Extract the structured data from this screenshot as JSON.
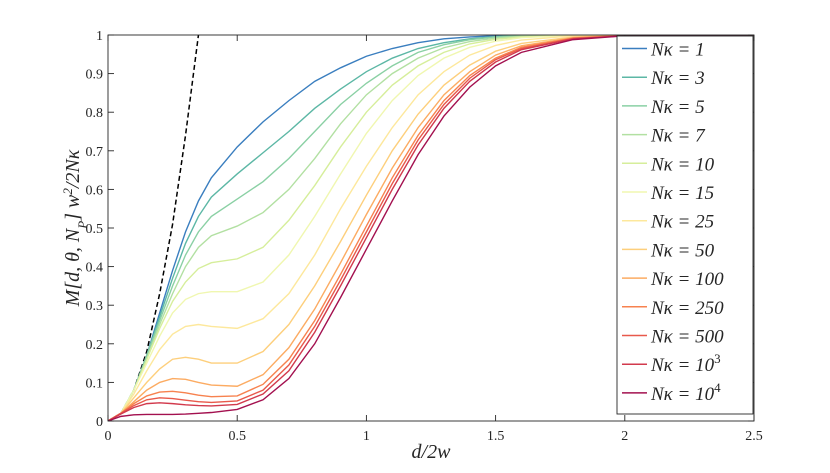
{
  "chart_data": {
    "type": "line",
    "title": "",
    "xlabel": "d/2w",
    "ylabel": "M[d, θ, N_P] w²/2Nκ",
    "xlim": [
      0,
      2.5
    ],
    "ylim": [
      0,
      1
    ],
    "xticks": [
      "0",
      "0.5",
      "1",
      "1.5",
      "2",
      "2.5"
    ],
    "xtick_values": [
      0,
      0.5,
      1,
      1.5,
      2,
      2.5
    ],
    "yticks": [
      "0",
      "0.1",
      "0.2",
      "0.3",
      "0.4",
      "0.5",
      "0.6",
      "0.7",
      "0.8",
      "0.9",
      "1"
    ],
    "ytick_values": [
      0,
      0.1,
      0.2,
      0.3,
      0.4,
      0.5,
      0.6,
      0.7,
      0.8,
      0.9,
      1
    ],
    "grid": false,
    "legend_position": "right",
    "reference_line": {
      "style": "dashed",
      "color": "#000000",
      "x": [
        0,
        0.05,
        0.1,
        0.15,
        0.2,
        0.25,
        0.3,
        0.35
      ],
      "y": [
        0,
        0.02,
        0.08,
        0.18,
        0.33,
        0.51,
        0.74,
        1.0
      ]
    },
    "series": [
      {
        "name": "Nκ = 1",
        "legend_label": "Nκ = 1",
        "color": "#3a7ebf",
        "x": [
          0,
          0.05,
          0.1,
          0.15,
          0.2,
          0.25,
          0.3,
          0.35,
          0.4,
          0.5,
          0.6,
          0.7,
          0.8,
          0.9,
          1.0,
          1.1,
          1.2,
          1.3,
          1.4,
          1.5,
          1.6,
          1.8,
          2.0,
          2.5
        ],
        "y": [
          0,
          0.02,
          0.08,
          0.17,
          0.28,
          0.39,
          0.49,
          0.57,
          0.63,
          0.71,
          0.775,
          0.83,
          0.88,
          0.915,
          0.945,
          0.965,
          0.98,
          0.99,
          0.995,
          0.998,
          1.0,
          1.0,
          1.0,
          1.0
        ]
      },
      {
        "name": "Nκ = 3",
        "legend_label": "Nκ = 3",
        "color": "#5cb7a5",
        "x": [
          0,
          0.05,
          0.1,
          0.15,
          0.2,
          0.25,
          0.3,
          0.35,
          0.4,
          0.5,
          0.6,
          0.7,
          0.8,
          0.9,
          1.0,
          1.1,
          1.2,
          1.3,
          1.4,
          1.5,
          1.6,
          1.8,
          2.0,
          2.5
        ],
        "y": [
          0,
          0.02,
          0.08,
          0.17,
          0.27,
          0.37,
          0.46,
          0.53,
          0.58,
          0.64,
          0.695,
          0.75,
          0.81,
          0.86,
          0.905,
          0.94,
          0.965,
          0.98,
          0.99,
          0.996,
          0.999,
          1.0,
          1.0,
          1.0
        ]
      },
      {
        "name": "Nκ = 5",
        "legend_label": "Nκ = 5",
        "color": "#8ad0a4",
        "x": [
          0,
          0.05,
          0.1,
          0.15,
          0.2,
          0.25,
          0.3,
          0.35,
          0.4,
          0.5,
          0.6,
          0.7,
          0.8,
          0.9,
          1.0,
          1.1,
          1.2,
          1.3,
          1.4,
          1.5,
          1.6,
          1.8,
          2.0,
          2.5
        ],
        "y": [
          0,
          0.02,
          0.08,
          0.17,
          0.26,
          0.35,
          0.43,
          0.49,
          0.53,
          0.575,
          0.62,
          0.68,
          0.75,
          0.82,
          0.875,
          0.92,
          0.955,
          0.975,
          0.988,
          0.995,
          0.998,
          1.0,
          1.0,
          1.0
        ]
      },
      {
        "name": "Nκ = 7",
        "legend_label": "Nκ = 7",
        "color": "#b2e0a2",
        "x": [
          0,
          0.05,
          0.1,
          0.15,
          0.2,
          0.25,
          0.3,
          0.35,
          0.4,
          0.5,
          0.6,
          0.7,
          0.8,
          0.9,
          1.0,
          1.1,
          1.2,
          1.3,
          1.4,
          1.5,
          1.6,
          1.8,
          2.0,
          2.5
        ],
        "y": [
          0,
          0.02,
          0.08,
          0.16,
          0.25,
          0.33,
          0.4,
          0.45,
          0.48,
          0.505,
          0.54,
          0.6,
          0.68,
          0.77,
          0.845,
          0.9,
          0.94,
          0.967,
          0.983,
          0.992,
          0.997,
          1.0,
          1.0,
          1.0
        ]
      },
      {
        "name": "Nκ = 10",
        "legend_label": "Nκ = 10",
        "color": "#d6ee9b",
        "x": [
          0,
          0.05,
          0.1,
          0.15,
          0.2,
          0.25,
          0.3,
          0.35,
          0.4,
          0.5,
          0.6,
          0.7,
          0.8,
          0.9,
          1.0,
          1.1,
          1.2,
          1.3,
          1.4,
          1.5,
          1.6,
          1.8,
          2.0,
          2.5
        ],
        "y": [
          0,
          0.02,
          0.08,
          0.16,
          0.24,
          0.31,
          0.36,
          0.395,
          0.41,
          0.42,
          0.45,
          0.52,
          0.61,
          0.71,
          0.8,
          0.87,
          0.92,
          0.955,
          0.977,
          0.989,
          0.995,
          0.999,
          1.0,
          1.0
        ]
      },
      {
        "name": "Nκ = 15",
        "legend_label": "Nκ = 15",
        "color": "#f0f7b0",
        "x": [
          0,
          0.05,
          0.1,
          0.15,
          0.2,
          0.25,
          0.3,
          0.35,
          0.4,
          0.5,
          0.6,
          0.7,
          0.8,
          0.9,
          1.0,
          1.1,
          1.2,
          1.3,
          1.4,
          1.5,
          1.6,
          1.8,
          2.0,
          2.5
        ],
        "y": [
          0,
          0.02,
          0.08,
          0.15,
          0.22,
          0.28,
          0.315,
          0.33,
          0.335,
          0.335,
          0.36,
          0.43,
          0.53,
          0.64,
          0.745,
          0.83,
          0.895,
          0.94,
          0.968,
          0.984,
          0.993,
          0.999,
          1.0,
          1.0
        ]
      },
      {
        "name": "Nκ = 25",
        "legend_label": "Nκ = 25",
        "color": "#fde89c",
        "x": [
          0,
          0.05,
          0.1,
          0.15,
          0.2,
          0.25,
          0.3,
          0.35,
          0.4,
          0.5,
          0.6,
          0.7,
          0.8,
          0.9,
          1.0,
          1.1,
          1.2,
          1.3,
          1.4,
          1.5,
          1.6,
          1.8,
          2.0,
          2.5
        ],
        "y": [
          0,
          0.02,
          0.07,
          0.13,
          0.185,
          0.225,
          0.245,
          0.25,
          0.245,
          0.24,
          0.265,
          0.33,
          0.43,
          0.55,
          0.66,
          0.76,
          0.845,
          0.905,
          0.948,
          0.973,
          0.987,
          0.998,
          1.0,
          1.0
        ]
      },
      {
        "name": "Nκ = 50",
        "legend_label": "Nκ = 50",
        "color": "#fdcf7c",
        "x": [
          0,
          0.05,
          0.1,
          0.15,
          0.2,
          0.25,
          0.3,
          0.35,
          0.4,
          0.5,
          0.6,
          0.7,
          0.8,
          0.9,
          1.0,
          1.1,
          1.2,
          1.3,
          1.4,
          1.5,
          1.6,
          1.8,
          2.0,
          2.5
        ],
        "y": [
          0,
          0.02,
          0.06,
          0.1,
          0.135,
          0.16,
          0.165,
          0.16,
          0.15,
          0.15,
          0.18,
          0.25,
          0.35,
          0.465,
          0.585,
          0.7,
          0.795,
          0.87,
          0.922,
          0.958,
          0.978,
          0.995,
          0.999,
          1.0
        ]
      },
      {
        "name": "Nκ = 100",
        "legend_label": "Nκ = 100",
        "color": "#fcab62",
        "x": [
          0,
          0.05,
          0.1,
          0.15,
          0.2,
          0.25,
          0.3,
          0.35,
          0.4,
          0.5,
          0.6,
          0.7,
          0.8,
          0.9,
          1.0,
          1.1,
          1.2,
          1.3,
          1.4,
          1.5,
          1.6,
          1.8,
          2.0,
          2.5
        ],
        "y": [
          0,
          0.02,
          0.05,
          0.08,
          0.1,
          0.11,
          0.108,
          0.1,
          0.093,
          0.09,
          0.12,
          0.19,
          0.29,
          0.41,
          0.535,
          0.655,
          0.76,
          0.845,
          0.905,
          0.948,
          0.972,
          0.993,
          0.999,
          1.0
        ]
      },
      {
        "name": "Nκ = 250",
        "legend_label": "Nκ = 250",
        "color": "#f7824f",
        "x": [
          0,
          0.05,
          0.1,
          0.15,
          0.2,
          0.25,
          0.3,
          0.35,
          0.4,
          0.5,
          0.6,
          0.7,
          0.8,
          0.9,
          1.0,
          1.1,
          1.2,
          1.3,
          1.4,
          1.5,
          1.6,
          1.8,
          2.0,
          2.5
        ],
        "y": [
          0,
          0.02,
          0.045,
          0.065,
          0.075,
          0.077,
          0.073,
          0.067,
          0.063,
          0.065,
          0.095,
          0.16,
          0.26,
          0.38,
          0.505,
          0.63,
          0.74,
          0.83,
          0.895,
          0.94,
          0.968,
          0.992,
          0.999,
          1.0
        ]
      },
      {
        "name": "Nκ = 500",
        "legend_label": "Nκ = 500",
        "color": "#e8594b",
        "x": [
          0,
          0.05,
          0.1,
          0.15,
          0.2,
          0.25,
          0.3,
          0.35,
          0.4,
          0.5,
          0.6,
          0.7,
          0.8,
          0.9,
          1.0,
          1.1,
          1.2,
          1.3,
          1.4,
          1.5,
          1.6,
          1.8,
          2.0,
          2.5
        ],
        "y": [
          0,
          0.02,
          0.04,
          0.055,
          0.06,
          0.058,
          0.054,
          0.05,
          0.048,
          0.052,
          0.08,
          0.145,
          0.245,
          0.365,
          0.49,
          0.615,
          0.728,
          0.82,
          0.888,
          0.936,
          0.965,
          0.991,
          0.998,
          1.0
        ]
      },
      {
        "name": "Nκ = 10³",
        "legend_label": "Nκ = 10",
        "legend_exponent": "3",
        "color": "#d23a4d",
        "x": [
          0,
          0.05,
          0.1,
          0.15,
          0.2,
          0.25,
          0.3,
          0.35,
          0.4,
          0.5,
          0.6,
          0.7,
          0.8,
          0.9,
          1.0,
          1.1,
          1.2,
          1.3,
          1.4,
          1.5,
          1.6,
          1.8,
          2.0,
          2.5
        ],
        "y": [
          0,
          0.018,
          0.035,
          0.045,
          0.047,
          0.045,
          0.042,
          0.04,
          0.039,
          0.043,
          0.07,
          0.13,
          0.23,
          0.35,
          0.475,
          0.6,
          0.715,
          0.81,
          0.88,
          0.93,
          0.962,
          0.99,
          0.998,
          1.0
        ]
      },
      {
        "name": "Nκ = 10⁴",
        "legend_label": "Nκ = 10",
        "legend_exponent": "4",
        "color": "#a3104f",
        "x": [
          0,
          0.05,
          0.1,
          0.15,
          0.2,
          0.25,
          0.3,
          0.35,
          0.4,
          0.5,
          0.6,
          0.7,
          0.8,
          0.9,
          1.0,
          1.1,
          1.2,
          1.3,
          1.4,
          1.5,
          1.6,
          1.8,
          2.0,
          2.5
        ],
        "y": [
          0,
          0.012,
          0.016,
          0.017,
          0.017,
          0.017,
          0.018,
          0.02,
          0.022,
          0.03,
          0.055,
          0.11,
          0.2,
          0.32,
          0.445,
          0.57,
          0.69,
          0.79,
          0.865,
          0.92,
          0.955,
          0.988,
          0.998,
          1.0
        ]
      }
    ]
  }
}
